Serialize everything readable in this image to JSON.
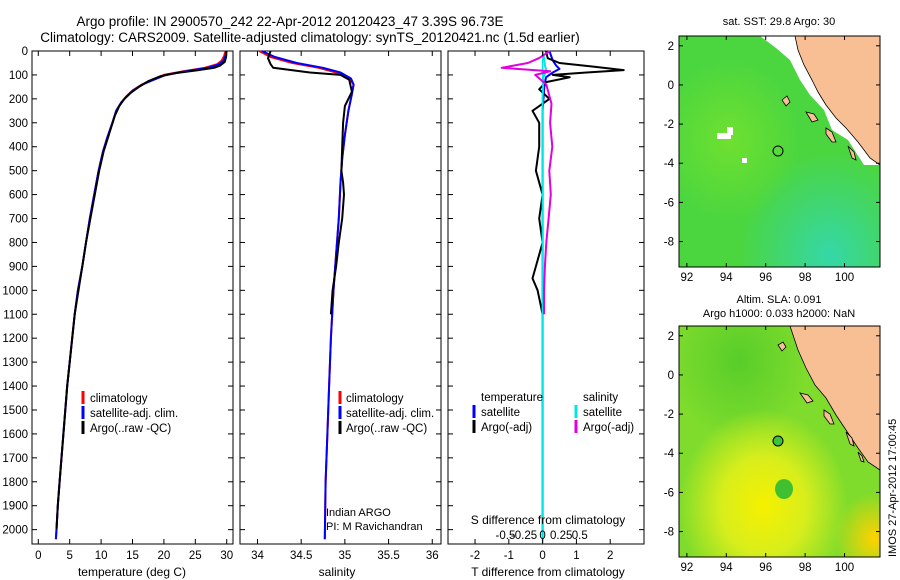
{
  "title": {
    "line1": "Argo profile: IN 2900570_242 22-Apr-2012 20120423_47 3.39S 96.73E",
    "line2": "Climatology: CARS2009. Satellite-adjusted climatology: synTS_20120421.nc (1.5d earlier)"
  },
  "colors": {
    "climatology": "#ff0000",
    "satellite": "#0000ff",
    "argo": "#000000",
    "salinity_satellite": "#00e5e5",
    "salinity_argo": "#e000e0",
    "land": "#f8bf94"
  },
  "depth_axis": {
    "ticks": [
      0,
      100,
      200,
      300,
      400,
      500,
      600,
      700,
      800,
      900,
      1000,
      1100,
      1200,
      1300,
      1400,
      1500,
      1600,
      1700,
      1800,
      1900,
      2000
    ],
    "range": [
      0,
      2060
    ]
  },
  "chart_data": [
    {
      "type": "line",
      "xlabel": "temperature (deg C)",
      "xlim": [
        -1,
        31
      ],
      "xticks": [
        0,
        5,
        10,
        15,
        20,
        25,
        30
      ],
      "legend": [
        "climatology",
        "satellite-adj. clim.",
        "Argo(..raw -QC)"
      ],
      "series": [
        {
          "name": "climatology",
          "color_key": "climatology",
          "points": [
            [
              29.8,
              0
            ],
            [
              29.6,
              20
            ],
            [
              29.2,
              40
            ],
            [
              28.5,
              55
            ],
            [
              26.5,
              70
            ],
            [
              23,
              85
            ],
            [
              20,
              100
            ],
            [
              18.2,
              120
            ],
            [
              16.5,
              140
            ],
            [
              15,
              165
            ],
            [
              14,
              190
            ],
            [
              13.2,
              215
            ],
            [
              12.4,
              250
            ],
            [
              11.8,
              300
            ],
            [
              11,
              360
            ],
            [
              10.3,
              420
            ],
            [
              9.6,
              500
            ],
            [
              8.9,
              600
            ],
            [
              8.2,
              700
            ],
            [
              7.6,
              800
            ],
            [
              7,
              900
            ],
            [
              6.3,
              1000
            ],
            [
              5.8,
              1100
            ],
            [
              5.4,
              1200
            ],
            [
              5,
              1300
            ],
            [
              4.6,
              1400
            ],
            [
              4.3,
              1500
            ],
            [
              4,
              1600
            ],
            [
              3.7,
              1700
            ],
            [
              3.4,
              1800
            ],
            [
              3.1,
              1900
            ],
            [
              2.9,
              2000
            ],
            [
              2.8,
              2040
            ]
          ]
        },
        {
          "name": "satellite-adj. clim.",
          "color_key": "satellite",
          "points": [
            [
              30,
              0
            ],
            [
              29.8,
              20
            ],
            [
              29.5,
              40
            ],
            [
              28.8,
              55
            ],
            [
              27,
              70
            ],
            [
              23.5,
              85
            ],
            [
              20.3,
              100
            ],
            [
              18.4,
              120
            ],
            [
              16.6,
              140
            ],
            [
              15.1,
              165
            ],
            [
              14.1,
              190
            ],
            [
              13.2,
              215
            ],
            [
              12.4,
              250
            ],
            [
              11.8,
              300
            ],
            [
              11,
              360
            ],
            [
              10.3,
              420
            ],
            [
              9.6,
              500
            ],
            [
              8.9,
              600
            ],
            [
              8.2,
              700
            ],
            [
              7.6,
              800
            ],
            [
              7,
              900
            ],
            [
              6.3,
              1000
            ],
            [
              5.8,
              1100
            ],
            [
              5.4,
              1200
            ],
            [
              5,
              1300
            ],
            [
              4.6,
              1400
            ],
            [
              4.3,
              1500
            ],
            [
              4,
              1600
            ],
            [
              3.7,
              1700
            ],
            [
              3.4,
              1800
            ],
            [
              3.1,
              1900
            ],
            [
              2.9,
              2000
            ],
            [
              2.8,
              2040
            ]
          ]
        },
        {
          "name": "Argo(..raw -QC)",
          "color_key": "argo",
          "points": [
            [
              29.9,
              0
            ],
            [
              29.9,
              25
            ],
            [
              29.7,
              45
            ],
            [
              29,
              60
            ],
            [
              28,
              70
            ],
            [
              25.5,
              80
            ],
            [
              22,
              92
            ],
            [
              19.5,
              105
            ],
            [
              17.6,
              125
            ],
            [
              16,
              150
            ],
            [
              14.7,
              175
            ],
            [
              13.7,
              200
            ],
            [
              12.9,
              230
            ],
            [
              12.2,
              270
            ],
            [
              11.6,
              320
            ],
            [
              11,
              370
            ],
            [
              10.4,
              420
            ],
            [
              9.7,
              500
            ],
            [
              9,
              600
            ],
            [
              8.3,
              700
            ],
            [
              7.6,
              800
            ],
            [
              7,
              900
            ],
            [
              6.4,
              1000
            ],
            [
              5.8,
              1100
            ],
            [
              5.4,
              1200
            ],
            [
              5,
              1300
            ],
            [
              4.6,
              1400
            ],
            [
              4.3,
              1500
            ],
            [
              4,
              1600
            ],
            [
              3.7,
              1700
            ],
            [
              3.4,
              1800
            ],
            [
              3.1,
              1900
            ],
            [
              2.9,
              2000
            ]
          ]
        }
      ]
    },
    {
      "type": "line",
      "xlabel": "salinity",
      "xlim": [
        33.8,
        36.1
      ],
      "xticks": [
        34,
        34.5,
        35,
        35.5,
        36
      ],
      "legend": [
        "climatology",
        "satellite-adj. clim.",
        "Argo(..raw -QC)"
      ],
      "annotation": [
        "Indian ARGO",
        "PI: M Ravichandran"
      ],
      "series": [
        {
          "name": "climatology",
          "color_key": "climatology",
          "points": [
            [
              34.02,
              0
            ],
            [
              34.15,
              25
            ],
            [
              34.4,
              50
            ],
            [
              34.7,
              70
            ],
            [
              34.9,
              90
            ],
            [
              35.05,
              115
            ],
            [
              35.1,
              140
            ],
            [
              35.08,
              180
            ],
            [
              35.04,
              250
            ],
            [
              35,
              350
            ],
            [
              34.97,
              450
            ],
            [
              34.95,
              550
            ],
            [
              34.93,
              700
            ],
            [
              34.9,
              850
            ],
            [
              34.87,
              1000
            ],
            [
              34.84,
              1200
            ],
            [
              34.82,
              1400
            ],
            [
              34.8,
              1600
            ],
            [
              34.78,
              1800
            ],
            [
              34.77,
              2040
            ]
          ]
        },
        {
          "name": "satellite-adj. clim.",
          "color_key": "satellite",
          "points": [
            [
              34.05,
              0
            ],
            [
              34.2,
              25
            ],
            [
              34.45,
              50
            ],
            [
              34.75,
              70
            ],
            [
              34.95,
              90
            ],
            [
              35.07,
              115
            ],
            [
              35.1,
              140
            ],
            [
              35.08,
              180
            ],
            [
              35.04,
              250
            ],
            [
              35,
              350
            ],
            [
              34.97,
              450
            ],
            [
              34.95,
              550
            ],
            [
              34.93,
              700
            ],
            [
              34.9,
              850
            ],
            [
              34.87,
              1000
            ],
            [
              34.84,
              1200
            ],
            [
              34.82,
              1400
            ],
            [
              34.8,
              1600
            ],
            [
              34.78,
              1800
            ],
            [
              34.77,
              2040
            ]
          ]
        },
        {
          "name": "Argo(..raw -QC)",
          "color_key": "argo",
          "points": [
            [
              34.15,
              0
            ],
            [
              34.12,
              30
            ],
            [
              34.15,
              55
            ],
            [
              34.18,
              70
            ],
            [
              34.6,
              90
            ],
            [
              34.95,
              100
            ],
            [
              35.05,
              120
            ],
            [
              35.08,
              170
            ],
            [
              35,
              230
            ],
            [
              34.98,
              300
            ],
            [
              34.97,
              400
            ],
            [
              34.96,
              500
            ],
            [
              34.98,
              550
            ],
            [
              34.99,
              600
            ],
            [
              34.97,
              700
            ],
            [
              34.93,
              800
            ],
            [
              34.9,
              900
            ],
            [
              34.86,
              1000
            ],
            [
              34.84,
              1100
            ]
          ]
        }
      ]
    },
    {
      "type": "line",
      "xlabel": "T difference from climatology",
      "xlabel_top": "S difference from climatology",
      "xlim": [
        -2.8,
        3.0
      ],
      "xticks": [
        -2,
        -1,
        0,
        1,
        2
      ],
      "s_xticks": [
        -0.5,
        -0.25,
        0,
        0.25,
        0.5
      ],
      "legend_titles": [
        "temperature",
        "salinity"
      ],
      "legend": [
        "satellite",
        "Argo(-adj)",
        "satellite",
        "Argo(-adj)"
      ],
      "series": [
        {
          "name": "temperature satellite",
          "color_key": "satellite",
          "points": [
            [
              0.2,
              0
            ],
            [
              0.3,
              40
            ],
            [
              0.4,
              60
            ],
            [
              0.5,
              75
            ],
            [
              0.3,
              90
            ],
            [
              0.1,
              110
            ],
            [
              0.05,
              150
            ],
            [
              0,
              250
            ],
            [
              0,
              500
            ],
            [
              0,
              1000
            ],
            [
              0,
              1500
            ],
            [
              0,
              2040
            ]
          ]
        },
        {
          "name": "temperature Argo(-adj)",
          "color_key": "argo",
          "points": [
            [
              0.1,
              0
            ],
            [
              0.15,
              30
            ],
            [
              0.5,
              50
            ],
            [
              1.5,
              65
            ],
            [
              2.4,
              80
            ],
            [
              1.3,
              90
            ],
            [
              0.3,
              100
            ],
            [
              0.8,
              110
            ],
            [
              0.1,
              130
            ],
            [
              -0.1,
              160
            ],
            [
              0.2,
              200
            ],
            [
              -0.3,
              250
            ],
            [
              -0.1,
              300
            ],
            [
              -0.1,
              400
            ],
            [
              -0.2,
              500
            ],
            [
              0,
              600
            ],
            [
              -0.1,
              700
            ],
            [
              0,
              800
            ],
            [
              -0.2,
              900
            ],
            [
              -0.3,
              950
            ],
            [
              -0.15,
              1000
            ],
            [
              0,
              1100
            ]
          ]
        },
        {
          "name": "salinity satellite",
          "color_key": "salinity_satellite",
          "points": [
            [
              0,
              0
            ],
            [
              0.02,
              30
            ],
            [
              0.03,
              60
            ],
            [
              0.05,
              80
            ],
            [
              0.01,
              110
            ],
            [
              0,
              200
            ],
            [
              0,
              500
            ],
            [
              0,
              1000
            ],
            [
              0,
              2040
            ]
          ]
        },
        {
          "name": "salinity Argo(-adj)",
          "color_key": "salinity_argo",
          "points": [
            [
              0.1,
              0
            ],
            [
              -0.05,
              30
            ],
            [
              -0.2,
              50
            ],
            [
              -0.55,
              70
            ],
            [
              0.1,
              85
            ],
            [
              -0.1,
              100
            ],
            [
              0.05,
              140
            ],
            [
              0.12,
              220
            ],
            [
              0.1,
              300
            ],
            [
              0.13,
              400
            ],
            [
              0.09,
              500
            ],
            [
              0.11,
              600
            ],
            [
              0.08,
              700
            ],
            [
              0.05,
              800
            ],
            [
              0.03,
              900
            ],
            [
              0.02,
              1000
            ],
            [
              0.02,
              1100
            ]
          ]
        }
      ]
    },
    {
      "type": "heatmap",
      "title": "sat. SST: 29.8 Argo: 30",
      "xlim": [
        91.6,
        101.8
      ],
      "ylim": [
        -9.3,
        2.5
      ],
      "xticks": [
        92,
        94,
        96,
        98,
        100
      ],
      "yticks": [
        2,
        0,
        -2,
        -4,
        -6,
        -8
      ],
      "marker": {
        "lon": 96.73,
        "lat": -3.39
      }
    },
    {
      "type": "heatmap",
      "title": "Altim. SLA: 0.091",
      "subtitle": "Argo h1000: 0.033 h2000: NaN",
      "xlim": [
        91.6,
        101.8
      ],
      "ylim": [
        -9.3,
        2.5
      ],
      "xticks": [
        92,
        94,
        96,
        98,
        100
      ],
      "yticks": [
        2,
        0,
        -2,
        -4,
        -6,
        -8
      ],
      "marker": {
        "lon": 96.73,
        "lat": -3.39
      }
    }
  ],
  "side_label": "IMOS 27-Apr-2012 17:00:45"
}
